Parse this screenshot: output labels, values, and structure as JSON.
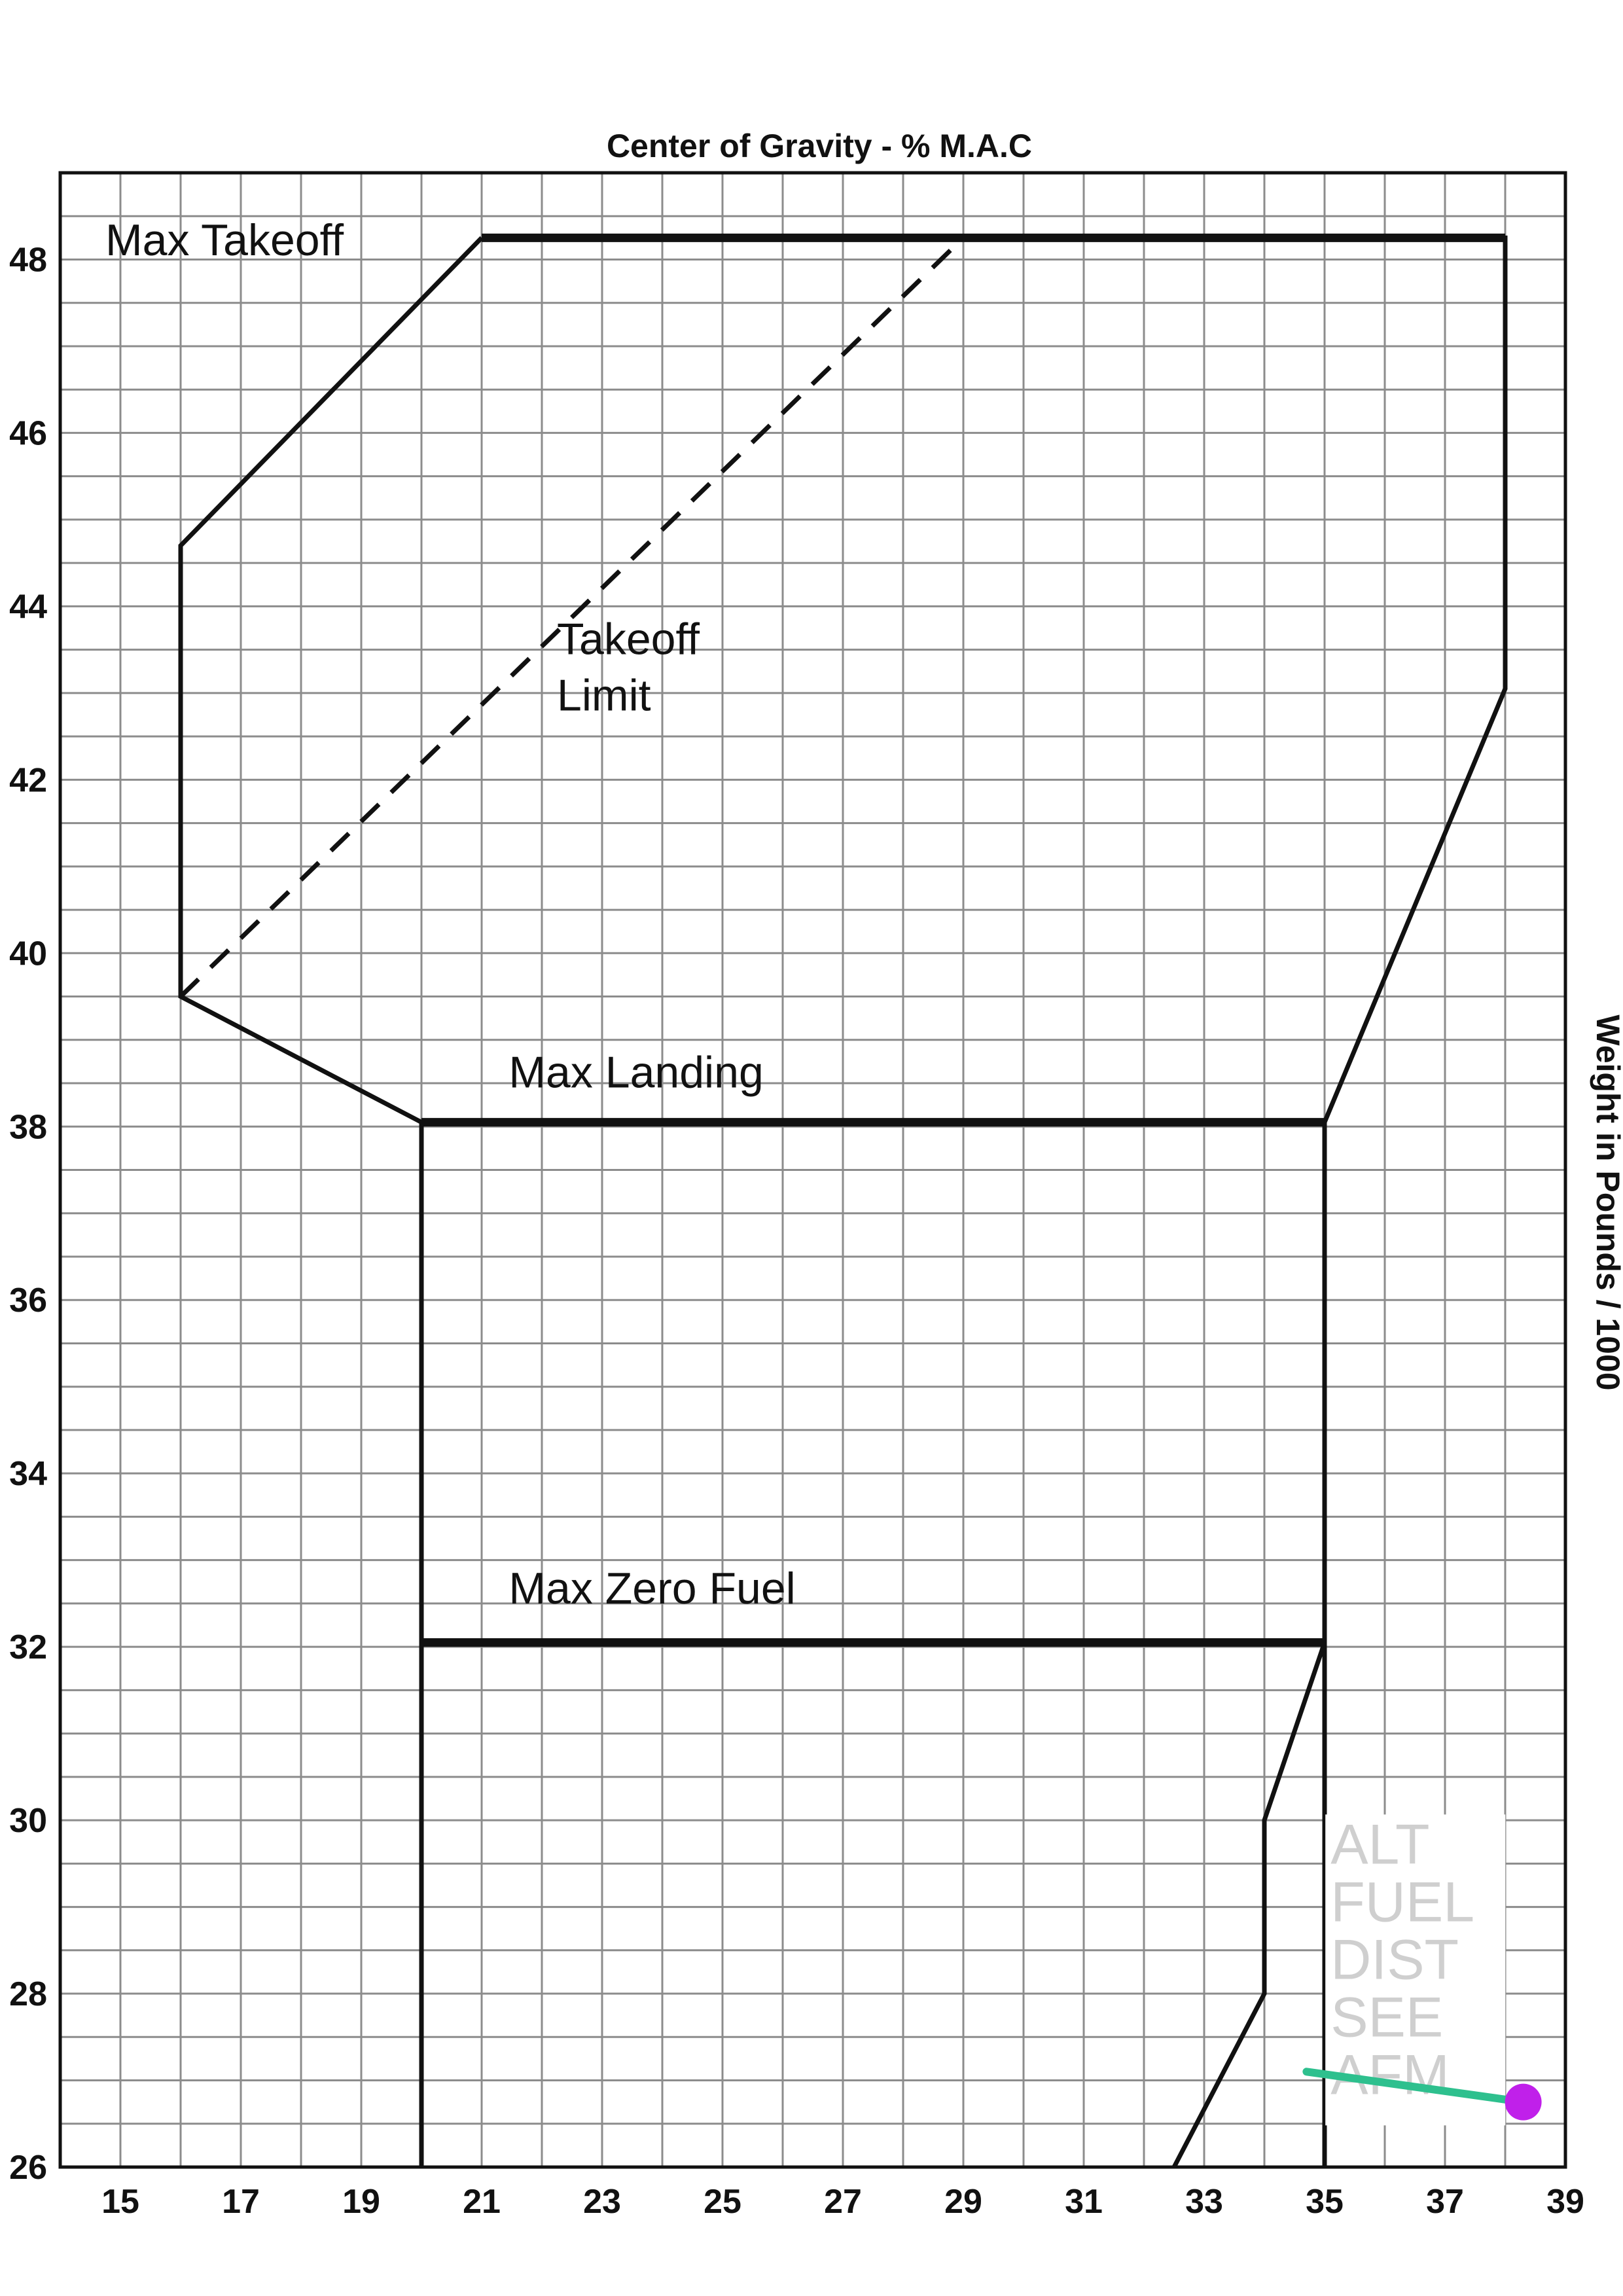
{
  "chart_data": {
    "type": "line",
    "title": "Center of Gravity - % M.A.C",
    "xlabel": "",
    "ylabel": "Weight in Pounds / 1000",
    "ylabel_side": "right",
    "xlim": [
      14,
      39
    ],
    "ylim": [
      26,
      49
    ],
    "x_grid_step": 1,
    "y_grid_step": 0.5,
    "grid": true,
    "x_ticks": [
      15,
      17,
      19,
      21,
      23,
      25,
      27,
      29,
      31,
      33,
      35,
      37,
      39
    ],
    "y_ticks": [
      26,
      28,
      30,
      32,
      34,
      36,
      38,
      40,
      42,
      44,
      46,
      48
    ],
    "series": [
      {
        "style": "solid",
        "points": [
          [
            21,
            48.25
          ],
          [
            38,
            48.25
          ],
          [
            38,
            43.05
          ],
          [
            35,
            38.05
          ],
          [
            20,
            38.05
          ],
          [
            16,
            39.5
          ],
          [
            16,
            44.7
          ],
          [
            21,
            48.25
          ]
        ]
      },
      {
        "style": "dashed",
        "points": [
          [
            16,
            39.5
          ],
          [
            29,
            48.25
          ]
        ]
      },
      {
        "style": "solid",
        "points": [
          [
            20,
            38.05
          ],
          [
            20,
            26
          ]
        ]
      },
      {
        "style": "solid",
        "points": [
          [
            20,
            32.05
          ],
          [
            35,
            32.05
          ]
        ]
      },
      {
        "style": "solid",
        "points": [
          [
            35,
            38.05
          ],
          [
            35,
            26
          ]
        ]
      },
      {
        "style": "solid",
        "points": [
          [
            35,
            32.05
          ],
          [
            34,
            30
          ],
          [
            34,
            28
          ],
          [
            32.5,
            26
          ]
        ]
      }
    ],
    "heavy_lines": [
      {
        "points": [
          [
            21,
            48.25
          ],
          [
            38,
            48.25
          ]
        ]
      },
      {
        "points": [
          [
            20,
            38.05
          ],
          [
            35,
            38.05
          ]
        ]
      },
      {
        "points": [
          [
            20,
            32.05
          ],
          [
            35,
            32.05
          ]
        ]
      }
    ],
    "annotations": [
      {
        "text": "Max Takeoff",
        "x": 14.75,
        "y": 48.05
      },
      {
        "text": "Takeoff",
        "x": 22.25,
        "y": 43.45
      },
      {
        "text": "Limit",
        "x": 22.25,
        "y": 42.8
      },
      {
        "text": "Max Landing",
        "x": 21.45,
        "y": 38.45
      },
      {
        "text": "Max Zero Fuel",
        "x": 21.45,
        "y": 32.5
      }
    ],
    "note": {
      "lines": [
        "ALT",
        "FUEL",
        "DIST",
        "SEE",
        "AFM"
      ],
      "x": 35.1,
      "y_top": 29.5,
      "color": "#cfcfcf"
    },
    "marker": {
      "line": [
        [
          34.7,
          27.1
        ],
        [
          38.3,
          26.75
        ]
      ],
      "point": [
        38.3,
        26.75
      ],
      "line_color": "#2ec08e",
      "point_color": "#c020ea"
    }
  }
}
